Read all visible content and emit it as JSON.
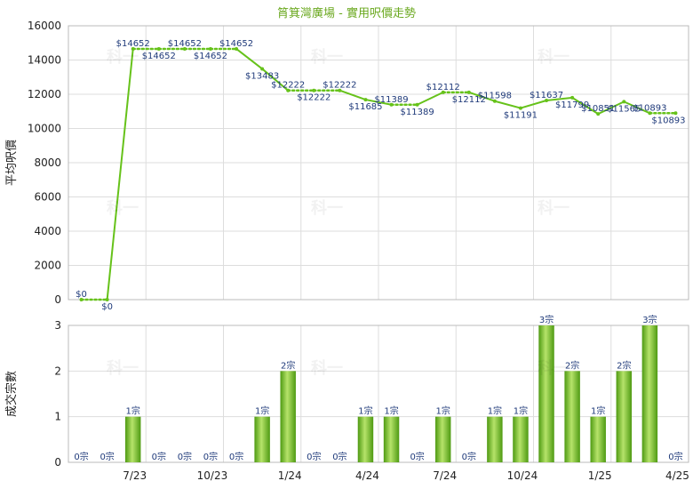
{
  "chart_data": [
    {
      "type": "line",
      "title": "筲箕灣廣場 - 實用呎價走勢",
      "ylabel": "平均呎價",
      "ylim": [
        0,
        16000
      ],
      "yticks": [
        0,
        2000,
        4000,
        6000,
        8000,
        10000,
        12000,
        14000,
        16000
      ],
      "grid": true,
      "values": [
        0,
        0,
        14652,
        14652,
        14652,
        14652,
        14652,
        13483,
        12222,
        12222,
        12222,
        11685,
        11389,
        11389,
        12112,
        12112,
        11598,
        11191,
        11637,
        11799,
        10851,
        11565,
        10893,
        10893
      ],
      "labels": [
        "$0",
        "$0",
        "$14652",
        "$14652",
        "$14652",
        "$14652",
        "$14652",
        "$13483",
        "$12222",
        "$12222",
        "$12222",
        "$11685",
        "$11389",
        "$11389",
        "$12112",
        "$12112",
        "$11598",
        "$11191",
        "$11637",
        "$11799",
        "$10851",
        "$11565",
        "$10893",
        "$10893"
      ],
      "dotted": [
        false,
        false,
        true,
        true,
        true,
        true,
        false,
        false,
        false,
        true,
        true,
        false,
        false,
        true,
        true,
        true,
        false,
        false,
        false,
        false,
        false,
        false,
        false,
        true
      ]
    },
    {
      "type": "bar",
      "ylabel": "成交宗數",
      "ylim": [
        0,
        3
      ],
      "yticks": [
        0,
        1,
        2,
        3
      ],
      "grid": true,
      "values": [
        0,
        0,
        1,
        0,
        0,
        0,
        0,
        1,
        2,
        0,
        0,
        1,
        1,
        0,
        1,
        0,
        1,
        1,
        3,
        2,
        1,
        2,
        3,
        0
      ],
      "labels": [
        "0宗",
        "0宗",
        "1宗",
        "0宗",
        "0宗",
        "0宗",
        "0宗",
        "1宗",
        "2宗",
        "0宗",
        "0宗",
        "1宗",
        "1宗",
        "0宗",
        "1宗",
        "0宗",
        "1宗",
        "1宗",
        "3宗",
        "2宗",
        "1宗",
        "2宗",
        "3宗",
        "0宗"
      ],
      "x_tick_labels": [
        {
          "label": "7/23",
          "index": 2
        },
        {
          "label": "10/23",
          "index": 5
        },
        {
          "label": "1/24",
          "index": 8
        },
        {
          "label": "4/24",
          "index": 11
        },
        {
          "label": "7/24",
          "index": 14
        },
        {
          "label": "10/24",
          "index": 17
        },
        {
          "label": "1/25",
          "index": 20
        },
        {
          "label": "4/25",
          "index": 23
        }
      ]
    }
  ],
  "watermark": "科一",
  "colors": {
    "line": "#66c21a",
    "bar_dark": "#4e9a12",
    "bar_light": "#b6e36a",
    "title": "#6aa81e",
    "label": "#1f3a7a"
  }
}
